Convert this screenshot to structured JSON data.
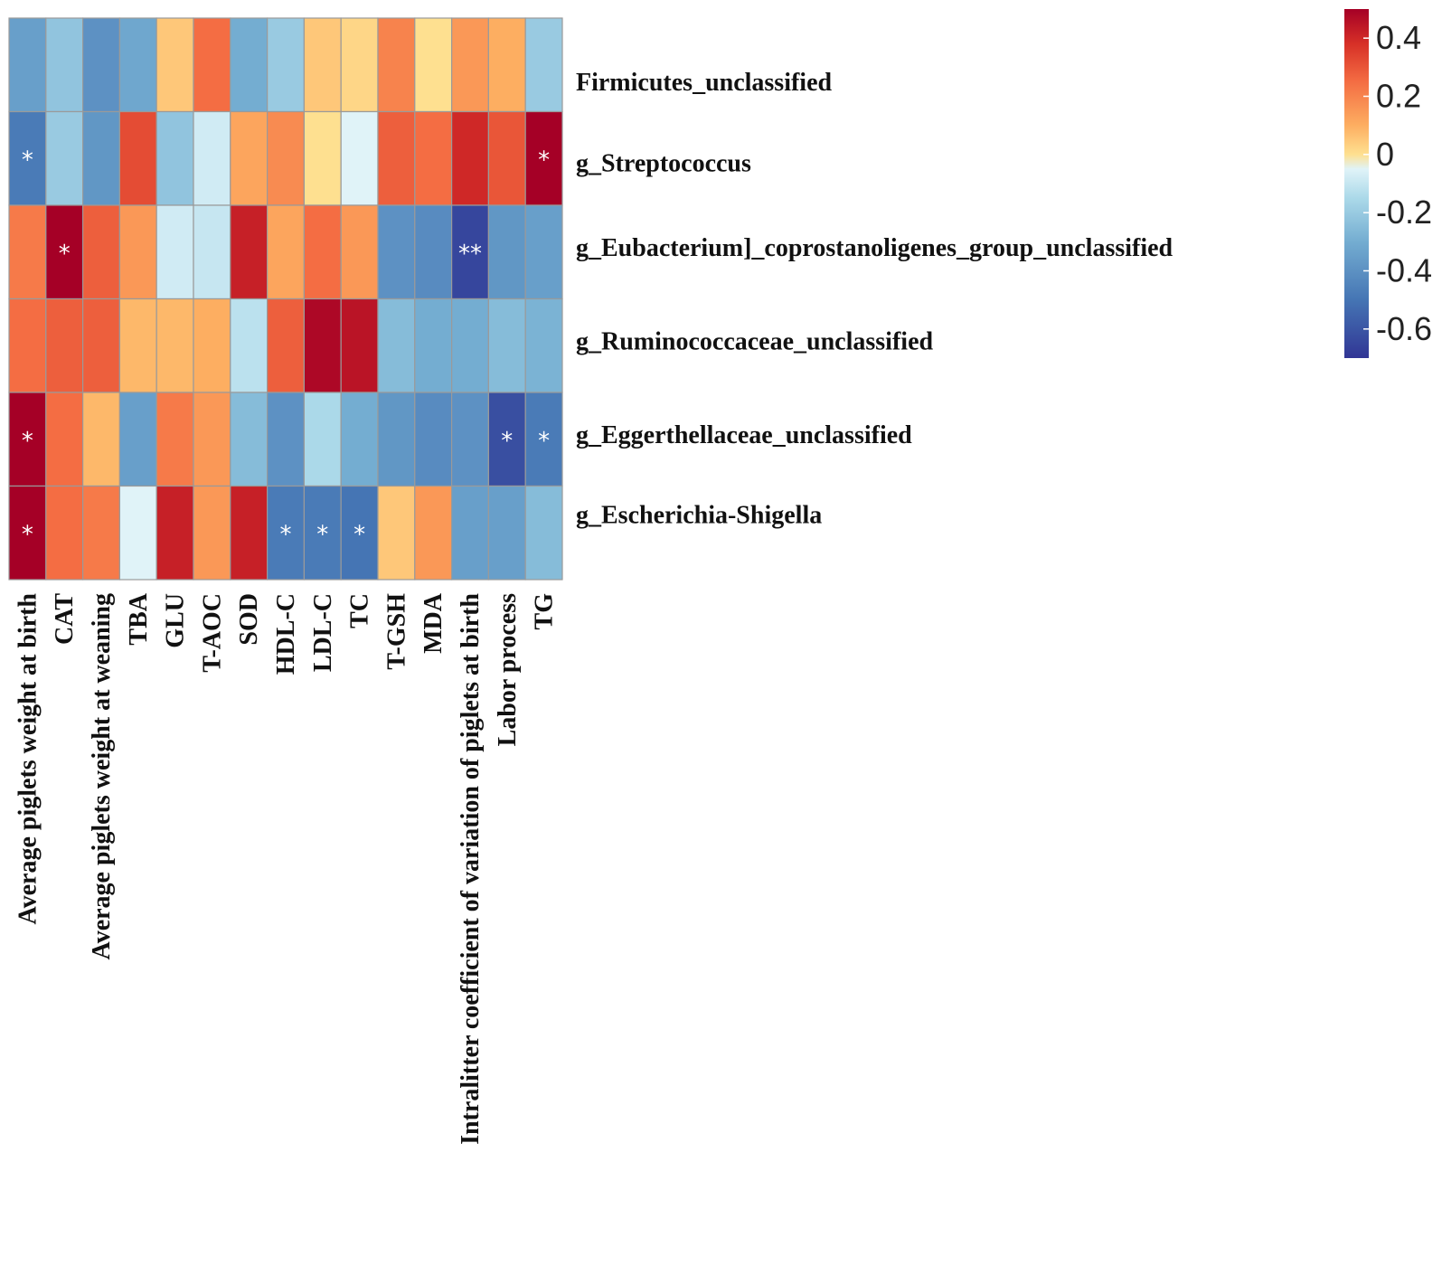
{
  "chart_data": {
    "type": "heatmap",
    "title": "",
    "rows": [
      "Firmicutes_unclassified",
      "g_Streptococcus",
      "g_Eubacterium]_coprostanoligenes_group_unclassified",
      "g_Ruminococcaceae_unclassified",
      "g_Eggerthellaceae_unclassified",
      "g_Escherichia-Shigella"
    ],
    "columns": [
      "Average piglets weight at birth",
      "CAT",
      "Average piglets weight at weaning",
      "TBA",
      "GLU",
      "T-AOC",
      "SOD",
      "HDL-C",
      "LDL-C",
      "TC",
      "T-GSH",
      "MDA",
      "Intralitter coefficient of variation of piglets at birth",
      "Labor process",
      "TG"
    ],
    "values": [
      [
        -0.35,
        -0.22,
        -0.4,
        -0.32,
        0.05,
        0.25,
        -0.3,
        -0.2,
        0.05,
        0.02,
        0.2,
        0.0,
        0.15,
        0.1,
        -0.2
      ],
      [
        -0.48,
        -0.2,
        -0.38,
        0.32,
        -0.22,
        -0.08,
        0.12,
        0.18,
        0.0,
        -0.05,
        0.28,
        0.25,
        0.4,
        0.3,
        0.5
      ],
      [
        0.22,
        0.5,
        0.28,
        0.15,
        -0.08,
        -0.1,
        0.42,
        0.12,
        0.25,
        0.15,
        -0.4,
        -0.42,
        -0.65,
        -0.38,
        -0.35
      ],
      [
        0.25,
        0.28,
        0.28,
        0.08,
        0.08,
        0.1,
        -0.12,
        0.28,
        0.48,
        0.45,
        -0.25,
        -0.3,
        -0.3,
        -0.25,
        -0.28
      ],
      [
        0.5,
        0.25,
        0.08,
        -0.35,
        0.22,
        0.15,
        -0.25,
        -0.4,
        -0.15,
        -0.3,
        -0.38,
        -0.42,
        -0.4,
        -0.62,
        -0.48
      ],
      [
        0.5,
        0.25,
        0.22,
        -0.05,
        0.42,
        0.15,
        0.42,
        -0.48,
        -0.48,
        -0.5,
        0.05,
        0.15,
        -0.35,
        -0.35,
        -0.25
      ]
    ],
    "significance": [
      [
        "",
        "",
        "",
        "",
        "",
        "",
        "",
        "",
        "",
        "",
        "",
        "",
        "",
        "",
        ""
      ],
      [
        "*",
        "",
        "",
        "",
        "",
        "",
        "",
        "",
        "",
        "",
        "",
        "",
        "",
        "",
        "*"
      ],
      [
        "",
        "*",
        "",
        "",
        "",
        "",
        "",
        "",
        "",
        "",
        "",
        "",
        "**",
        "",
        ""
      ],
      [
        "",
        "",
        "",
        "",
        "",
        "",
        "",
        "",
        "",
        "",
        "",
        "",
        "",
        "",
        ""
      ],
      [
        "*",
        "",
        "",
        "",
        "",
        "",
        "",
        "",
        "",
        "",
        "",
        "",
        "",
        "*",
        "*"
      ],
      [
        "*",
        "",
        "",
        "",
        "",
        "",
        "",
        "*",
        "*",
        "*",
        "",
        "",
        "",
        "",
        ""
      ]
    ],
    "color_scale": {
      "min": -0.7,
      "max": 0.5,
      "stops": [
        {
          "value": -0.7,
          "color": "#313695"
        },
        {
          "value": -0.5,
          "color": "#4575b4"
        },
        {
          "value": -0.3,
          "color": "#74add1"
        },
        {
          "value": -0.15,
          "color": "#abd9e9"
        },
        {
          "value": -0.05,
          "color": "#e0f3f8"
        },
        {
          "value": 0.0,
          "color": "#fee090"
        },
        {
          "value": 0.1,
          "color": "#fdae61"
        },
        {
          "value": 0.25,
          "color": "#f46d43"
        },
        {
          "value": 0.38,
          "color": "#d73027"
        },
        {
          "value": 0.5,
          "color": "#a50026"
        }
      ],
      "ticks": [
        0.4,
        0.2,
        0,
        -0.2,
        -0.4,
        -0.6
      ],
      "tick_labels": [
        "0.4",
        "0.2",
        "0",
        "-0.2",
        "-0.4",
        "-0.6"
      ]
    },
    "legend_position": "top-right"
  }
}
